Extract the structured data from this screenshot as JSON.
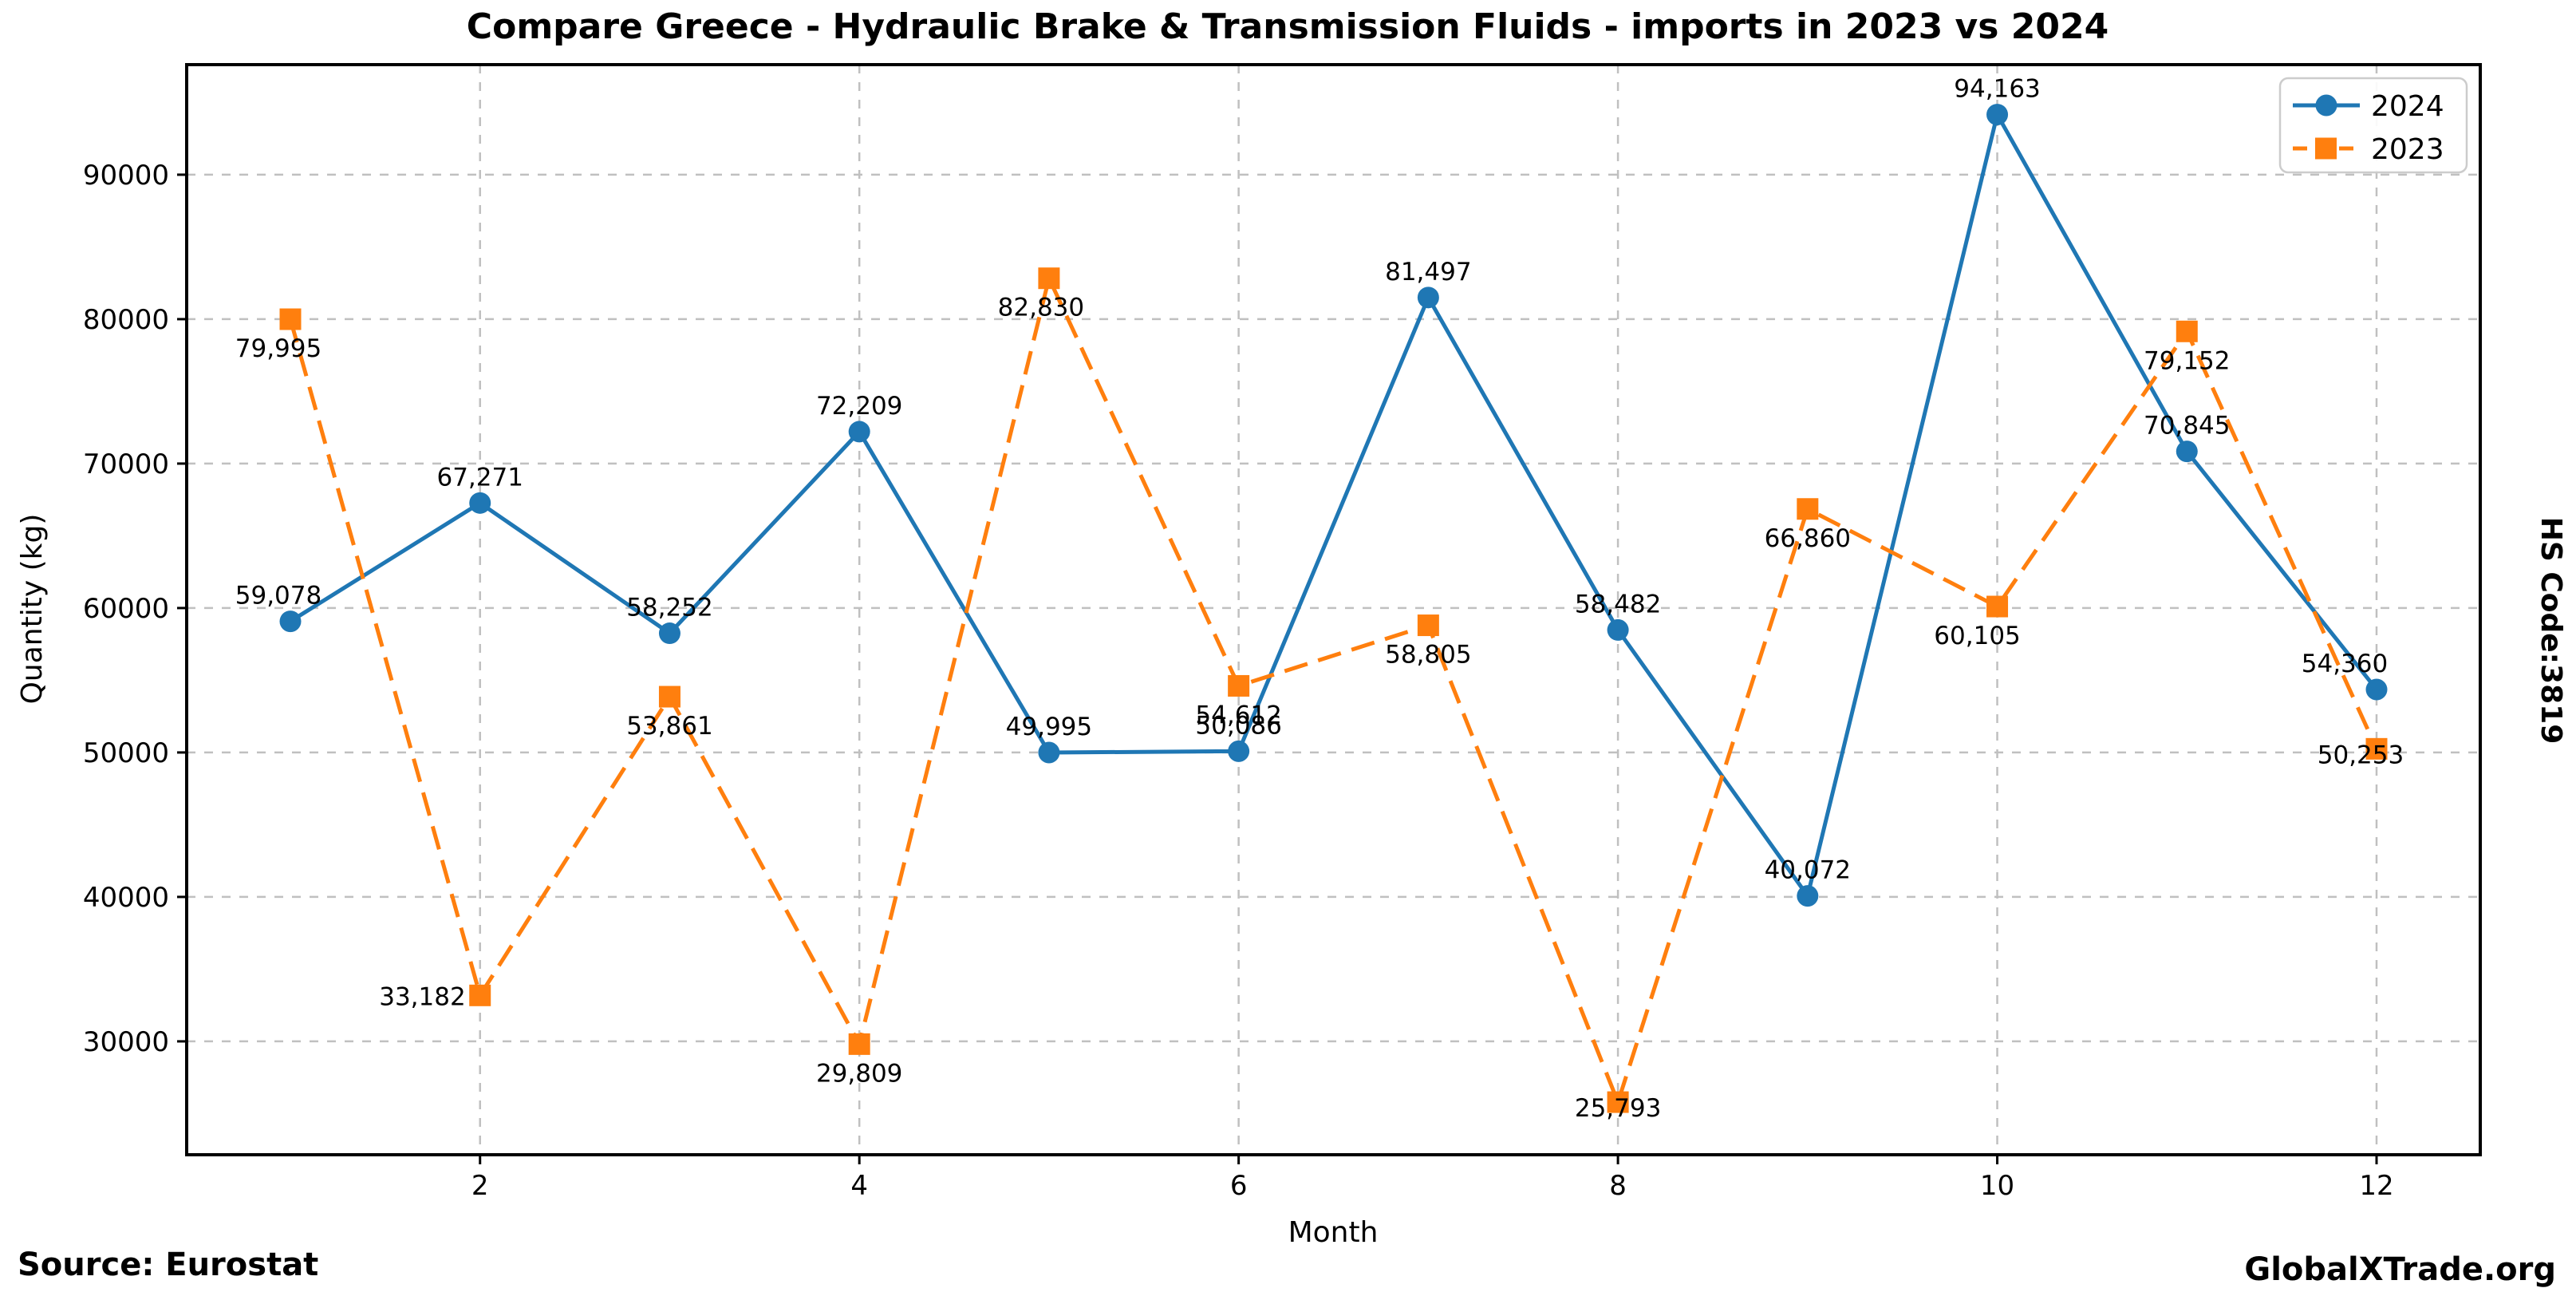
{
  "title": "Compare Greece - Hydraulic Brake & Transmission Fluids - imports in 2023 vs 2024",
  "side_label": "HS Code:3819",
  "footer": {
    "source": "Source: Eurostat",
    "brand": "GlobalXTrade.org"
  },
  "chart_data": {
    "type": "line",
    "title": "Compare Greece - Hydraulic Brake & Transmission Fluids - imports in 2023 vs 2024",
    "xlabel": "Month",
    "ylabel": "Quantity (kg)",
    "x": [
      1,
      2,
      3,
      4,
      5,
      6,
      7,
      8,
      9,
      10,
      11,
      12
    ],
    "x_ticks": [
      2,
      4,
      6,
      8,
      10,
      12
    ],
    "y_ticks": [
      30000,
      40000,
      50000,
      60000,
      70000,
      80000,
      90000
    ],
    "xlim": [
      0.45,
      12.55
    ],
    "ylim": [
      22150,
      97620
    ],
    "grid": true,
    "legend_position": "upper right",
    "background": "#ffffff",
    "grid_color": "#c0c0c0",
    "series": [
      {
        "name": "2024",
        "color": "#1f77b4",
        "style": "solid",
        "marker": "circle",
        "values": [
          59078,
          67271,
          58252,
          72209,
          49995,
          50086,
          81497,
          58482,
          40072,
          94163,
          70845,
          54360
        ],
        "label_side": [
          "above",
          "above",
          "above",
          "above",
          "above",
          "above",
          "above",
          "above",
          "above",
          "above",
          "above",
          "above"
        ],
        "label_dx": [
          -15,
          0,
          0,
          0,
          0,
          0,
          0,
          0,
          0,
          0,
          0,
          -40
        ]
      },
      {
        "name": "2023",
        "color": "#ff7f0e",
        "style": "dashed",
        "marker": "square",
        "values": [
          79995,
          33182,
          53861,
          29809,
          82830,
          54612,
          58805,
          25793,
          66860,
          60105,
          79152,
          50253
        ],
        "label_side": [
          "below",
          "left",
          "below",
          "below",
          "below",
          "below",
          "below",
          "overlap",
          "below",
          "below",
          "below",
          "overlap"
        ],
        "label_dx": [
          -15,
          0,
          0,
          0,
          -10,
          0,
          0,
          0,
          0,
          -25,
          0,
          -20
        ]
      }
    ]
  }
}
